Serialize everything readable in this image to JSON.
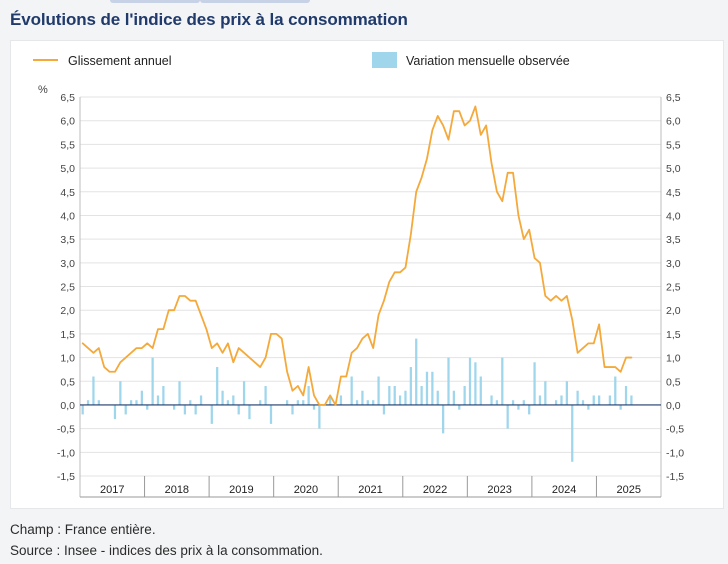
{
  "title": "Évolutions de l'indice des prix à la consommation",
  "footer": {
    "champ": "Champ : France entière.",
    "source": "Source : Insee - indices des prix à la consommation."
  },
  "colors": {
    "line": "#f4a93a",
    "bar": "#9fd6ec",
    "title": "#1f3a6b",
    "axis": "#444444",
    "grid": "#e3e3e3"
  },
  "chart_data": {
    "type": "line+bar",
    "title": "Évolutions de l'indice des prix à la consommation",
    "ylabel": "%",
    "ylim": [
      -1.5,
      6.5
    ],
    "yticks": [
      -1.5,
      -1.0,
      -0.5,
      0.0,
      0.5,
      1.0,
      1.5,
      2.0,
      2.5,
      3.0,
      3.5,
      4.0,
      4.5,
      5.0,
      5.5,
      6.0,
      6.5
    ],
    "ytick_labels": [
      "-1,5",
      "-1,0",
      "-0,5",
      "0,0",
      "0,5",
      "1,0",
      "1,5",
      "2,0",
      "2,5",
      "3,0",
      "3,5",
      "4,0",
      "4,5",
      "5,0",
      "5,5",
      "6,0",
      "6,5"
    ],
    "grid": true,
    "years": [
      "2017",
      "2018",
      "2019",
      "2020",
      "2021",
      "2022",
      "2023",
      "2024",
      "2025"
    ],
    "months_per_year": 12,
    "legend": [
      "Glissement annuel",
      "Variation mensuelle observée"
    ],
    "legend_position": "top",
    "series": [
      {
        "name": "Glissement annuel",
        "kind": "line",
        "values": [
          1.3,
          1.2,
          1.1,
          1.2,
          0.8,
          0.7,
          0.7,
          0.9,
          1.0,
          1.1,
          1.2,
          1.2,
          1.3,
          1.2,
          1.6,
          1.6,
          2.0,
          2.0,
          2.3,
          2.3,
          2.2,
          2.2,
          1.9,
          1.6,
          1.2,
          1.3,
          1.1,
          1.3,
          0.9,
          1.2,
          1.1,
          1.0,
          0.9,
          0.8,
          1.0,
          1.5,
          1.5,
          1.4,
          0.7,
          0.3,
          0.4,
          0.2,
          0.8,
          0.2,
          0.0,
          0.0,
          0.2,
          0.0,
          0.6,
          0.6,
          1.1,
          1.2,
          1.4,
          1.5,
          1.2,
          1.9,
          2.2,
          2.6,
          2.8,
          2.8,
          2.9,
          3.6,
          4.5,
          4.8,
          5.2,
          5.8,
          6.1,
          5.9,
          5.6,
          6.2,
          6.2,
          5.9,
          6.0,
          6.3,
          5.7,
          5.9,
          5.1,
          4.5,
          4.3,
          4.9,
          4.9,
          4.0,
          3.5,
          3.7,
          3.1,
          3.0,
          2.3,
          2.2,
          2.3,
          2.2,
          2.3,
          1.8,
          1.1,
          1.2,
          1.3,
          1.3,
          1.7,
          0.8,
          0.8,
          0.8,
          0.7,
          1.0,
          1.0
        ]
      },
      {
        "name": "Variation mensuelle observée",
        "kind": "bar",
        "values": [
          -0.2,
          0.1,
          0.6,
          0.1,
          0.0,
          0.0,
          -0.3,
          0.5,
          -0.2,
          0.1,
          0.1,
          0.3,
          -0.1,
          1.0,
          0.2,
          0.4,
          0.0,
          -0.1,
          0.5,
          -0.2,
          0.1,
          -0.2,
          0.2,
          0.0,
          -0.4,
          0.8,
          0.3,
          0.1,
          0.2,
          -0.2,
          0.5,
          -0.3,
          0.0,
          0.1,
          0.4,
          -0.4,
          0.0,
          0.0,
          0.1,
          -0.2,
          0.1,
          0.1,
          0.4,
          -0.1,
          -0.5,
          0.0,
          0.2,
          0.0,
          0.2,
          0.0,
          0.6,
          0.1,
          0.3,
          0.1,
          0.1,
          0.6,
          -0.2,
          0.4,
          0.4,
          0.2,
          0.3,
          0.8,
          1.4,
          0.4,
          0.7,
          0.7,
          0.3,
          -0.6,
          1.0,
          0.3,
          -0.1,
          0.4,
          1.0,
          0.9,
          0.6,
          0.0,
          0.2,
          0.1,
          1.0,
          -0.5,
          0.1,
          -0.1,
          0.1,
          -0.2,
          0.9,
          0.2,
          0.5,
          0.0,
          0.1,
          0.2,
          0.5,
          -1.2,
          0.3,
          0.1,
          -0.1,
          0.2,
          0.2,
          0.0,
          0.2,
          0.6,
          -0.1,
          0.4,
          0.2
        ]
      }
    ]
  }
}
